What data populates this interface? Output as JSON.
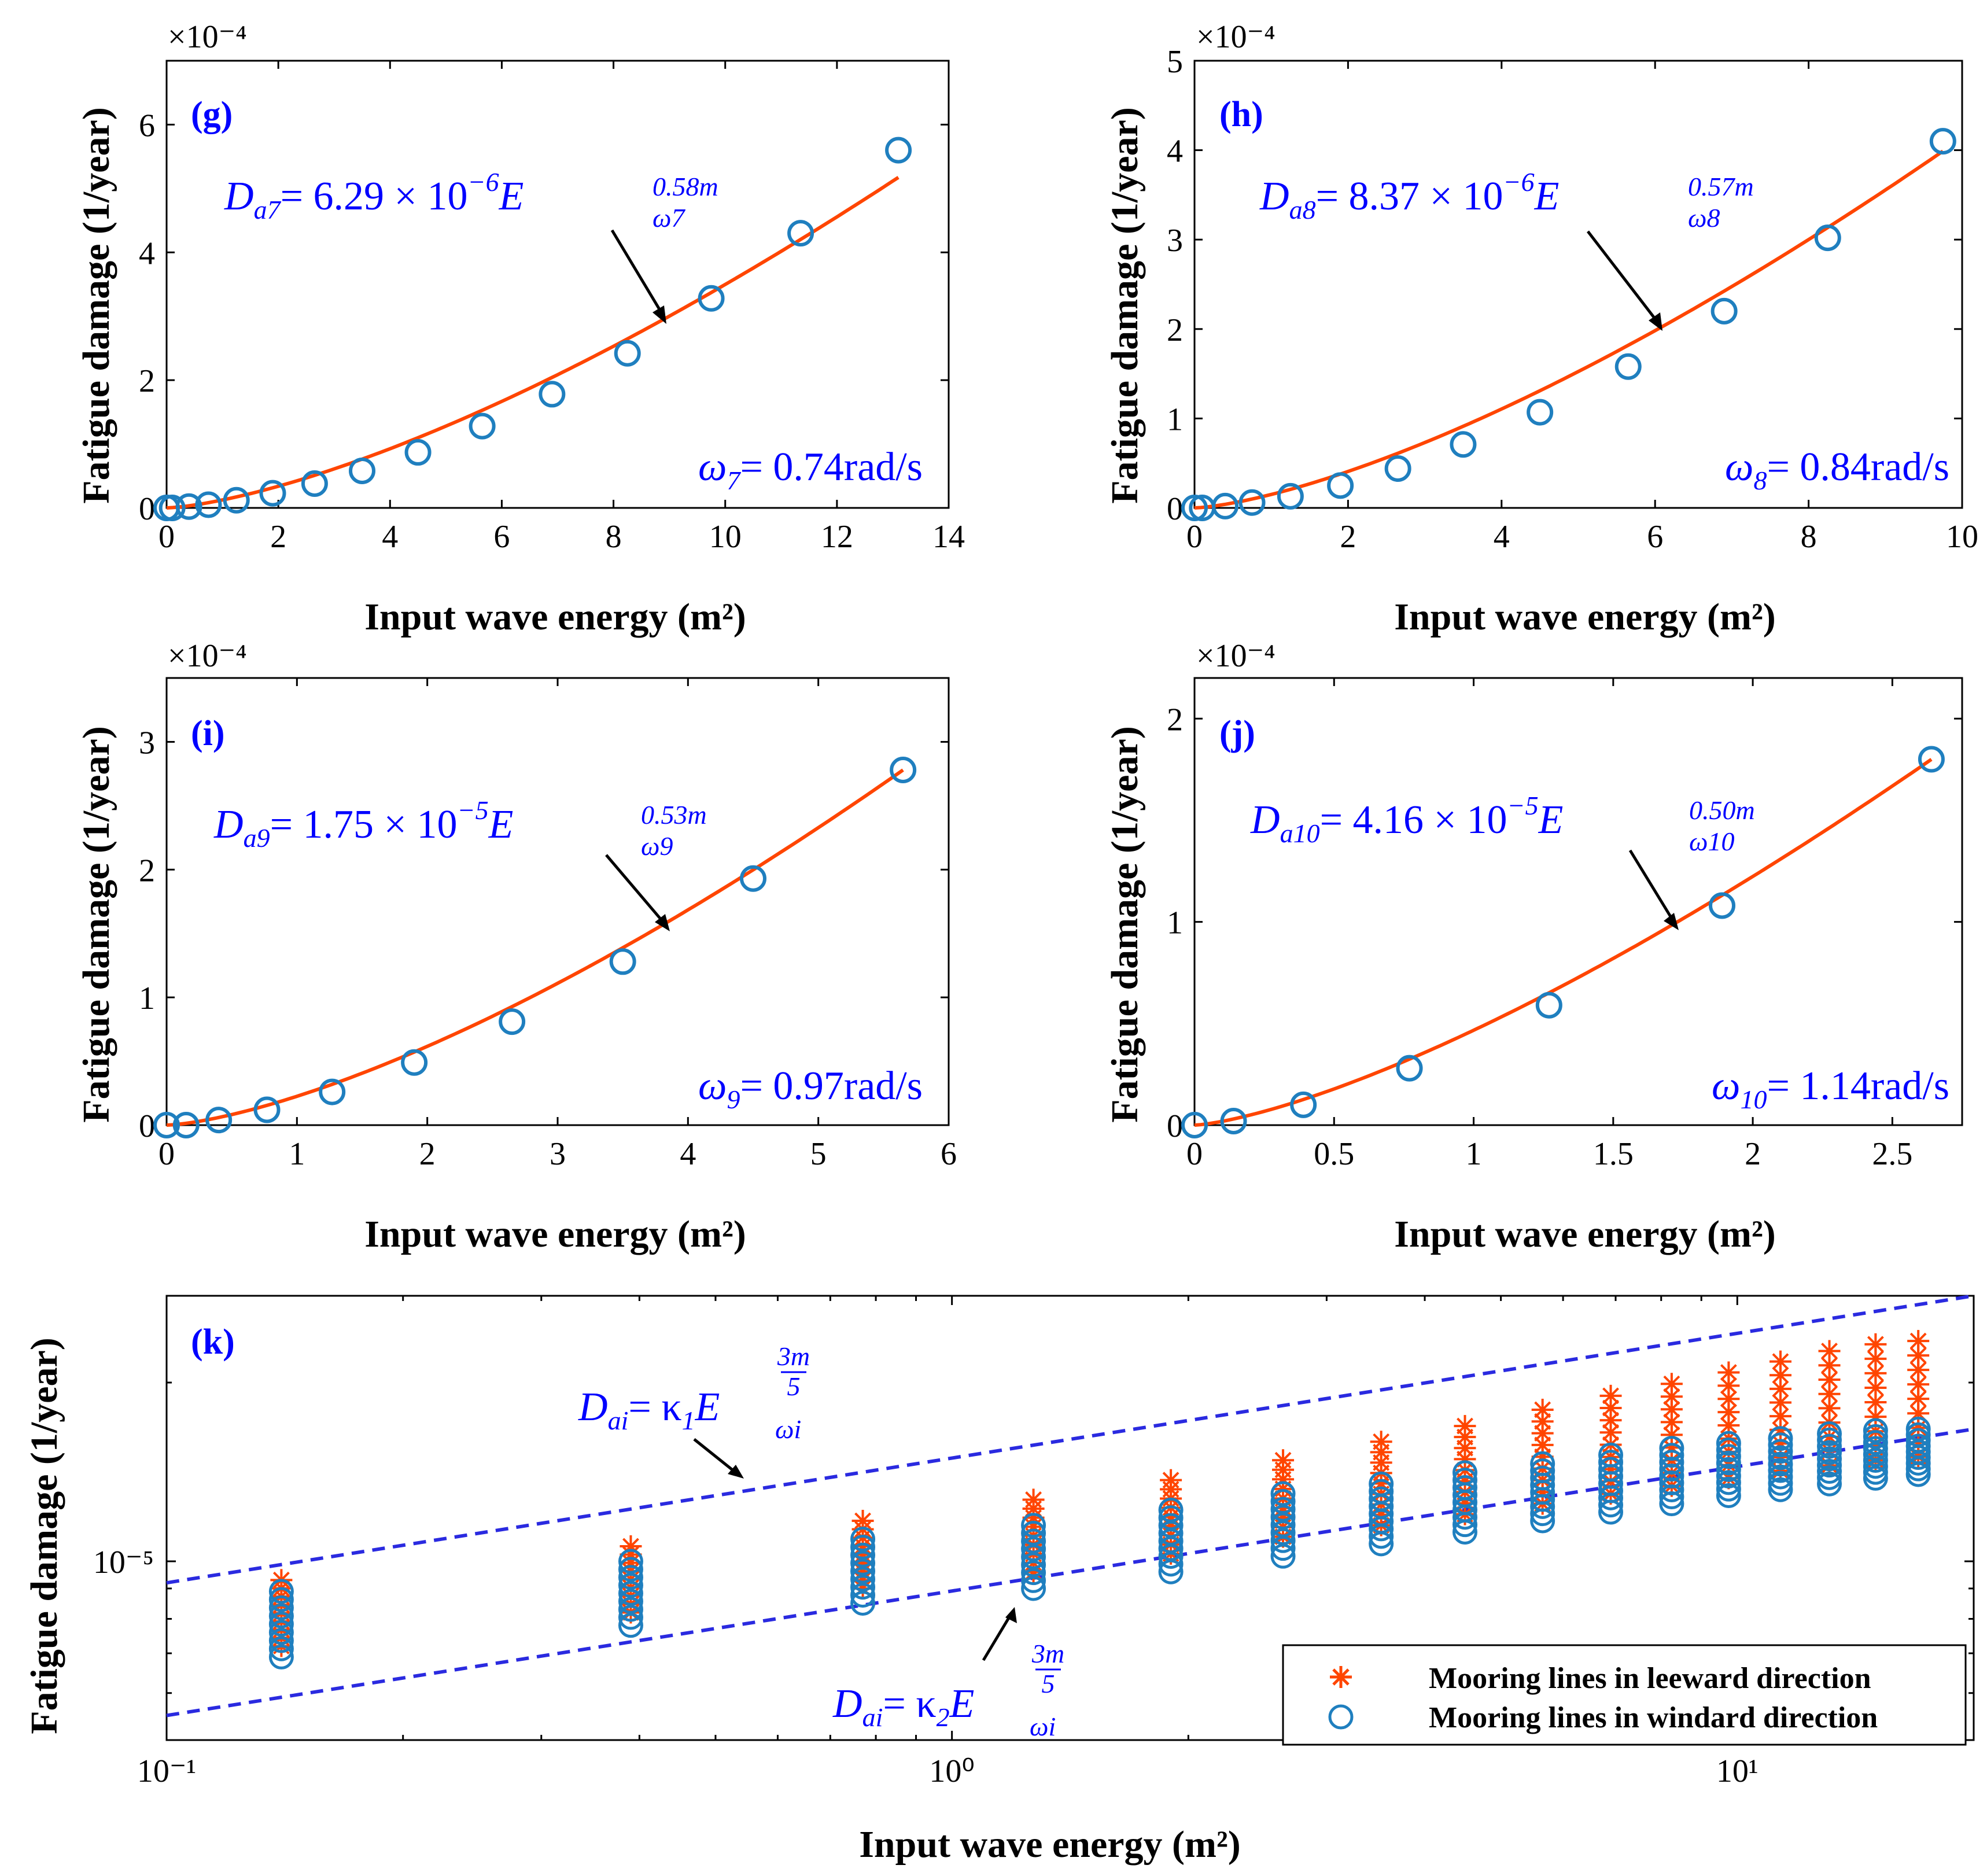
{
  "colors": {
    "fit_line": "#ff4500",
    "marker_blue": "#1f7fbf",
    "marker_orange": "#ff4500",
    "annotation": "#0000ff",
    "bound_line": "#2a2ae0"
  },
  "chart_data": [
    {
      "id": "g",
      "type": "scatter",
      "label": "(g)",
      "xlabel": "Input wave energy (m²)",
      "ylabel": "Fatigue damage (1/year)",
      "xlim": [
        0,
        14
      ],
      "ylim": [
        0,
        7
      ],
      "xticks": [
        0,
        2,
        4,
        6,
        8,
        10,
        12,
        14
      ],
      "xtick_labels": [
        "0",
        "2",
        "4",
        "6",
        "8",
        "10",
        "12",
        "14"
      ],
      "yticks": [
        0,
        2,
        4,
        6
      ],
      "ytick_labels": [
        "0",
        "2",
        "4",
        "6"
      ],
      "y_multiplier": "×10⁻⁴",
      "x": [
        0.0,
        0.1,
        0.4,
        0.75,
        1.25,
        1.9,
        2.65,
        3.5,
        4.5,
        5.65,
        6.9,
        8.25,
        9.75,
        11.35,
        13.1
      ],
      "y": [
        0.0,
        0.0,
        0.02,
        0.05,
        0.12,
        0.23,
        0.38,
        0.58,
        0.87,
        1.28,
        1.78,
        2.42,
        3.28,
        4.3,
        5.6
      ],
      "fit": {
        "coef": 0.1241,
        "power": 1.45,
        "color": "#ff4500"
      },
      "equation": {
        "lhs": "D",
        "lhs_sub": "a7",
        "rhs": "= 6.29 × 10",
        "exp": "−6",
        "e": "E",
        "sup": "0.58m",
        "sub": "ω7"
      },
      "omega": {
        "sym": "ω",
        "sub": "7",
        "rhs": "= 0.74rad/s"
      }
    },
    {
      "id": "h",
      "type": "scatter",
      "label": "(h)",
      "xlabel": "Input wave energy (m²)",
      "ylabel": "Fatigue damage (1/year)",
      "xlim": [
        0,
        10
      ],
      "ylim": [
        0,
        5
      ],
      "xticks": [
        0,
        2,
        4,
        6,
        8,
        10
      ],
      "xtick_labels": [
        "0",
        "2",
        "4",
        "6",
        "8",
        "10"
      ],
      "yticks": [
        0,
        1,
        2,
        3,
        4,
        5
      ],
      "ytick_labels": [
        "0",
        "1",
        "2",
        "3",
        "4",
        "5"
      ],
      "y_multiplier": "×10⁻⁴",
      "x": [
        0.0,
        0.1,
        0.4,
        0.75,
        1.25,
        1.9,
        2.65,
        3.5,
        4.5,
        5.65,
        6.9,
        8.25,
        9.75
      ],
      "y": [
        0.0,
        0.0,
        0.02,
        0.06,
        0.13,
        0.25,
        0.44,
        0.71,
        1.07,
        1.58,
        2.2,
        3.02,
        4.1
      ],
      "fit": {
        "coef": 0.1502,
        "power": 1.44,
        "color": "#ff4500"
      },
      "equation": {
        "lhs": "D",
        "lhs_sub": "a8",
        "rhs": "= 8.37 × 10",
        "exp": "−6",
        "e": "E",
        "sup": "0.57m",
        "sub": "ω8"
      },
      "omega": {
        "sym": "ω",
        "sub": "8",
        "rhs": "= 0.84rad/s"
      }
    },
    {
      "id": "i",
      "type": "scatter",
      "label": "(i)",
      "xlabel": "Input wave energy (m²)",
      "ylabel": "Fatigue damage (1/year)",
      "xlim": [
        0,
        6
      ],
      "ylim": [
        0,
        3.5
      ],
      "xticks": [
        0,
        1,
        2,
        3,
        4,
        5,
        6
      ],
      "xtick_labels": [
        "0",
        "1",
        "2",
        "3",
        "4",
        "5",
        "6"
      ],
      "yticks": [
        0,
        1,
        2,
        3
      ],
      "ytick_labels": [
        "0",
        "1",
        "2",
        "3"
      ],
      "y_multiplier": "×10⁻⁴",
      "x": [
        0.0,
        0.15,
        0.4,
        0.77,
        1.27,
        1.9,
        2.65,
        3.5,
        4.5,
        5.65
      ],
      "y": [
        0.0,
        0.0,
        0.04,
        0.12,
        0.26,
        0.49,
        0.81,
        1.28,
        1.93,
        2.78
      ],
      "fit": {
        "coef": 0.2257,
        "power": 1.45,
        "color": "#ff4500"
      },
      "equation": {
        "lhs": "D",
        "lhs_sub": "a9",
        "rhs": "= 1.75 × 10",
        "exp": "−5",
        "e": "E",
        "sup": "0.53m",
        "sub": "ω9"
      },
      "omega": {
        "sym": "ω",
        "sub": "9",
        "rhs": "= 0.97rad/s"
      }
    },
    {
      "id": "j",
      "type": "scatter",
      "label": "(j)",
      "xlabel": "Input wave energy (m²)",
      "ylabel": "Fatigue damage (1/year)",
      "xlim": [
        0,
        2.75
      ],
      "ylim": [
        0,
        2.2
      ],
      "xticks": [
        0,
        0.5,
        1,
        1.5,
        2,
        2.5
      ],
      "xtick_labels": [
        "0",
        "0.5",
        "1",
        "1.5",
        "2",
        "2.5"
      ],
      "yticks": [
        0,
        1,
        2
      ],
      "ytick_labels": [
        "0",
        "1",
        "2"
      ],
      "y_multiplier": "×10⁻⁴",
      "x": [
        0.0,
        0.14,
        0.39,
        0.77,
        1.27,
        1.89,
        2.64
      ],
      "y": [
        0.0,
        0.02,
        0.1,
        0.28,
        0.59,
        1.08,
        1.8
      ],
      "fit": {
        "coef": 0.4668,
        "power": 1.39,
        "color": "#ff4500"
      },
      "equation": {
        "lhs": "D",
        "lhs_sub": "a10",
        "rhs": "= 4.16 × 10",
        "exp": "−5",
        "e": "E",
        "sup": "0.50m",
        "sub": "ω10"
      },
      "omega": {
        "sym": "ω",
        "sub": "10",
        "rhs": "= 1.14rad/s"
      }
    },
    {
      "id": "k",
      "type": "scatter",
      "label": "(k)",
      "xscale": "log",
      "yscale": "log",
      "xlabel": "Input wave energy (m²)",
      "ylabel": "Fatigue damage (1/year)",
      "xlim": [
        0.1,
        20
      ],
      "ylim": [
        5e-06,
        2.8e-05
      ],
      "xticks": [
        0.1,
        1,
        10
      ],
      "xtick_labels": [
        "10⁻¹",
        "10⁰",
        "10¹"
      ],
      "yticks": [
        1e-05
      ],
      "ytick_labels": [
        "10⁻⁵"
      ],
      "x_groups": [
        0.14,
        0.39,
        0.77,
        1.27,
        1.9,
        2.64,
        3.52,
        4.5,
        5.65,
        6.9,
        8.25,
        9.75,
        11.35,
        13.1,
        15.0,
        17.0
      ],
      "windard_min": [
        6.9e-06,
        7.8e-06,
        8.5e-06,
        9e-06,
        9.6e-06,
        1.02e-05,
        1.07e-05,
        1.12e-05,
        1.17e-05,
        1.21e-05,
        1.25e-05,
        1.29e-05,
        1.32e-05,
        1.35e-05,
        1.38e-05,
        1.4e-05
      ],
      "windard_max": [
        8.9e-06,
        1e-05,
        1.09e-05,
        1.15e-05,
        1.22e-05,
        1.3e-05,
        1.35e-05,
        1.41e-05,
        1.46e-05,
        1.51e-05,
        1.55e-05,
        1.58e-05,
        1.61e-05,
        1.64e-05,
        1.66e-05,
        1.67e-05
      ],
      "leeward_min": [
        7.2e-06,
        8.2e-06,
        9e-06,
        9.6e-06,
        1.03e-05,
        1.1e-05,
        1.15e-05,
        1.2e-05,
        1.25e-05,
        1.3e-05,
        1.34e-05,
        1.38e-05,
        1.42e-05,
        1.45e-05,
        1.48e-05,
        1.5e-05
      ],
      "leeward_max": [
        9.3e-06,
        1.06e-05,
        1.17e-05,
        1.27e-05,
        1.37e-05,
        1.48e-05,
        1.59e-05,
        1.69e-05,
        1.8e-05,
        1.9e-05,
        1.99e-05,
        2.08e-05,
        2.17e-05,
        2.26e-05,
        2.32e-05,
        2.35e-05
      ],
      "bounds": [
        {
          "name": "upper",
          "x": [
            0.1,
            20
          ],
          "y": [
            9.2e-06,
            2.8e-05
          ]
        },
        {
          "name": "lower",
          "x": [
            0.1,
            20
          ],
          "y": [
            5.5e-06,
            1.67e-05
          ]
        }
      ],
      "eq_upper": {
        "lhs": "D",
        "lhs_sub": "ai",
        "rhs": "= κ",
        "k_sub": "1",
        "e": "E",
        "sup_num": "3m",
        "sup_den": "5",
        "sub": "ωi"
      },
      "eq_lower": {
        "lhs": "D",
        "lhs_sub": "ai",
        "rhs": "= κ",
        "k_sub": "2",
        "e": "E",
        "sup_num": "3m",
        "sup_den": "5",
        "sub": "ωi"
      },
      "legend": [
        {
          "label": "Mooring lines in leeward direction",
          "marker": "asterisk",
          "color": "#ff4500"
        },
        {
          "label": "Mooring lines in windard direction",
          "marker": "circle",
          "color": "#1f7fbf"
        }
      ],
      "legend_position": "bottom-right"
    }
  ]
}
